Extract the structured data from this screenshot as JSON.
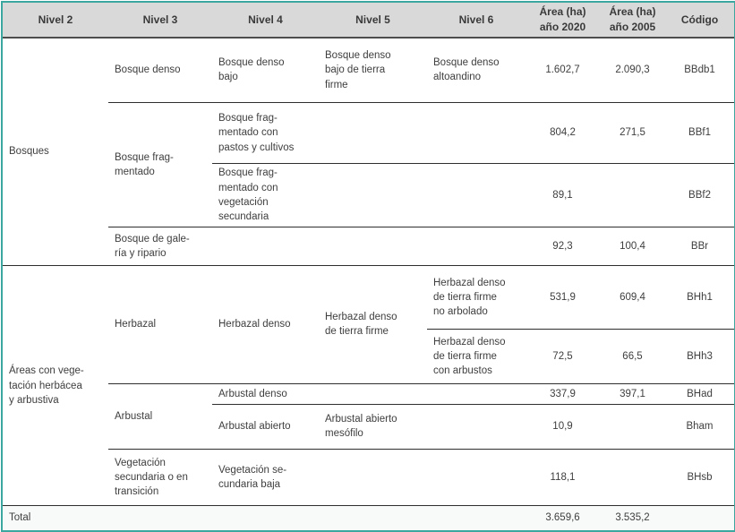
{
  "table": {
    "header": [
      "Nivel 2",
      "Nivel 3",
      "Nivel 4",
      "Nivel 5",
      "Nivel 6",
      "Área (ha)\naño 2020",
      "Área (ha)\naño 2005",
      "Código"
    ],
    "rows": [
      {
        "n2": "Bosques",
        "n3": "Bosque denso",
        "n4": "Bosque denso\nbajo",
        "n5": "Bosque denso\nbajo de tierra\nfirme",
        "n6": "Bosque denso\naltoandino",
        "a2020": "1.602,7",
        "a2005": "2.090,3",
        "code": "BBdb1"
      },
      {
        "n3": "Bosque frag-\nmentado",
        "n4": "Bosque frag-\nmentado con\npastos y cultivos",
        "a2020": "804,2",
        "a2005": "271,5",
        "code": "BBf1"
      },
      {
        "n4": "Bosque frag-\nmentado con\nvegetación\nsecundaria",
        "a2020": "89,1",
        "code": "BBf2"
      },
      {
        "n3": "Bosque de gale-\nría y ripario",
        "a2020": "92,3",
        "a2005": "100,4",
        "code": "BBr"
      },
      {
        "n2": "Áreas con vege-\ntación herbácea\ny arbustiva",
        "n3": "Herbazal",
        "n4": "Herbazal denso",
        "n5": "Herbazal denso\nde tierra firme",
        "n6": "Herbazal denso\nde tierra firme\nno arbolado",
        "a2020": "531,9",
        "a2005": "609,4",
        "code": "BHh1"
      },
      {
        "n6": "Herbazal denso\nde tierra firme\ncon arbustos",
        "a2020": "72,5",
        "a2005": "66,5",
        "code": "BHh3"
      },
      {
        "n3": "Arbustal",
        "n4": "Arbustal denso",
        "a2020": "337,9",
        "a2005": "397,1",
        "code": "BHad"
      },
      {
        "n4": "Arbustal abierto",
        "n5": "Arbustal abierto\nmesófilo",
        "a2020": "10,9",
        "code": "Bham"
      },
      {
        "n3": "Vegetación\nsecundaria o en\ntransición",
        "n4": "Vegetación se-\ncundaria baja",
        "a2020": "118,1",
        "code": "BHsb"
      }
    ],
    "total": {
      "label": "Total",
      "a2020": "3.659,6",
      "a2005": "3.535,2"
    }
  },
  "colors": {
    "outer_border": "#3ca79e",
    "header_bg": "#d9d9d9",
    "header_rule": "#4d4d4d",
    "row_rule": "#2e2e2e",
    "text": "#3e3e3e",
    "total_row_bg": "#f8f9f9"
  }
}
